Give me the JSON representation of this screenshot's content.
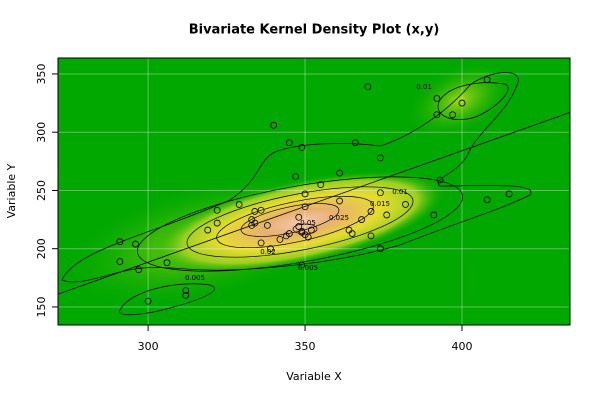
{
  "chart_data": {
    "type": "scatter",
    "title": "Bivariate Kernel Density Plot (x,y)",
    "x_label": "Variable X",
    "y_label": "Variable Y",
    "xlim": [
      271.3,
      434.4
    ],
    "ylim": [
      134.5,
      363.7
    ],
    "xticks": [
      300,
      350,
      400
    ],
    "yticks": [
      150,
      200,
      250,
      300,
      350
    ],
    "grid": true,
    "point_color": "#000000",
    "fit_color": "#000000",
    "contour_labels": [
      "0.005",
      "0.005",
      "0.01",
      "0.01",
      "0.015",
      "0.02",
      "0.025",
      "0.05"
    ],
    "series": [
      {
        "x": [
          408,
          392,
          400,
          397,
          392,
          370,
          340,
          345,
          349,
          366,
          374,
          347,
          361,
          355,
          350,
          374,
          393,
          408,
          415,
          382,
          371,
          376,
          391,
          368,
          364,
          365,
          371,
          374,
          349,
          361,
          350,
          348,
          342,
          344,
          345,
          349,
          350,
          351,
          352,
          348,
          338,
          334,
          333,
          336,
          334,
          329,
          322,
          322,
          319,
          333,
          336,
          339,
          291,
          296,
          291,
          297,
          306,
          300,
          312,
          312,
          349
        ],
        "values": [
          345,
          329,
          325,
          315,
          315,
          339,
          306,
          291,
          287,
          291,
          278,
          262,
          265,
          255,
          247,
          248,
          259,
          242,
          247,
          238,
          232,
          229,
          229,
          225,
          216,
          213,
          211,
          200,
          186,
          241,
          236,
          227,
          208,
          211,
          213,
          215,
          212,
          210,
          216,
          219,
          220,
          222,
          225,
          233,
          232,
          238,
          233,
          222,
          216,
          220,
          205,
          200,
          206,
          204,
          189,
          182,
          188,
          155,
          164,
          160,
          214
        ]
      }
    ],
    "fit_line": {
      "x": [
        271.3,
        434.4
      ],
      "y": [
        161,
        317
      ]
    }
  }
}
